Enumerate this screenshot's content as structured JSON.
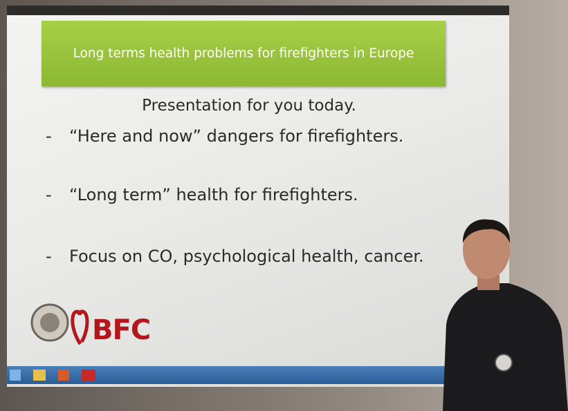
{
  "slide": {
    "title": "Long terms health problems for firefighters in Europe",
    "subtitle": "Presentation for you today.",
    "bullets": [
      "“Here and now” dangers for firefighters.",
      "“Long term” health for firefighters.",
      "Focus on CO, psychological health, cancer."
    ],
    "logo_text": "BFC"
  }
}
